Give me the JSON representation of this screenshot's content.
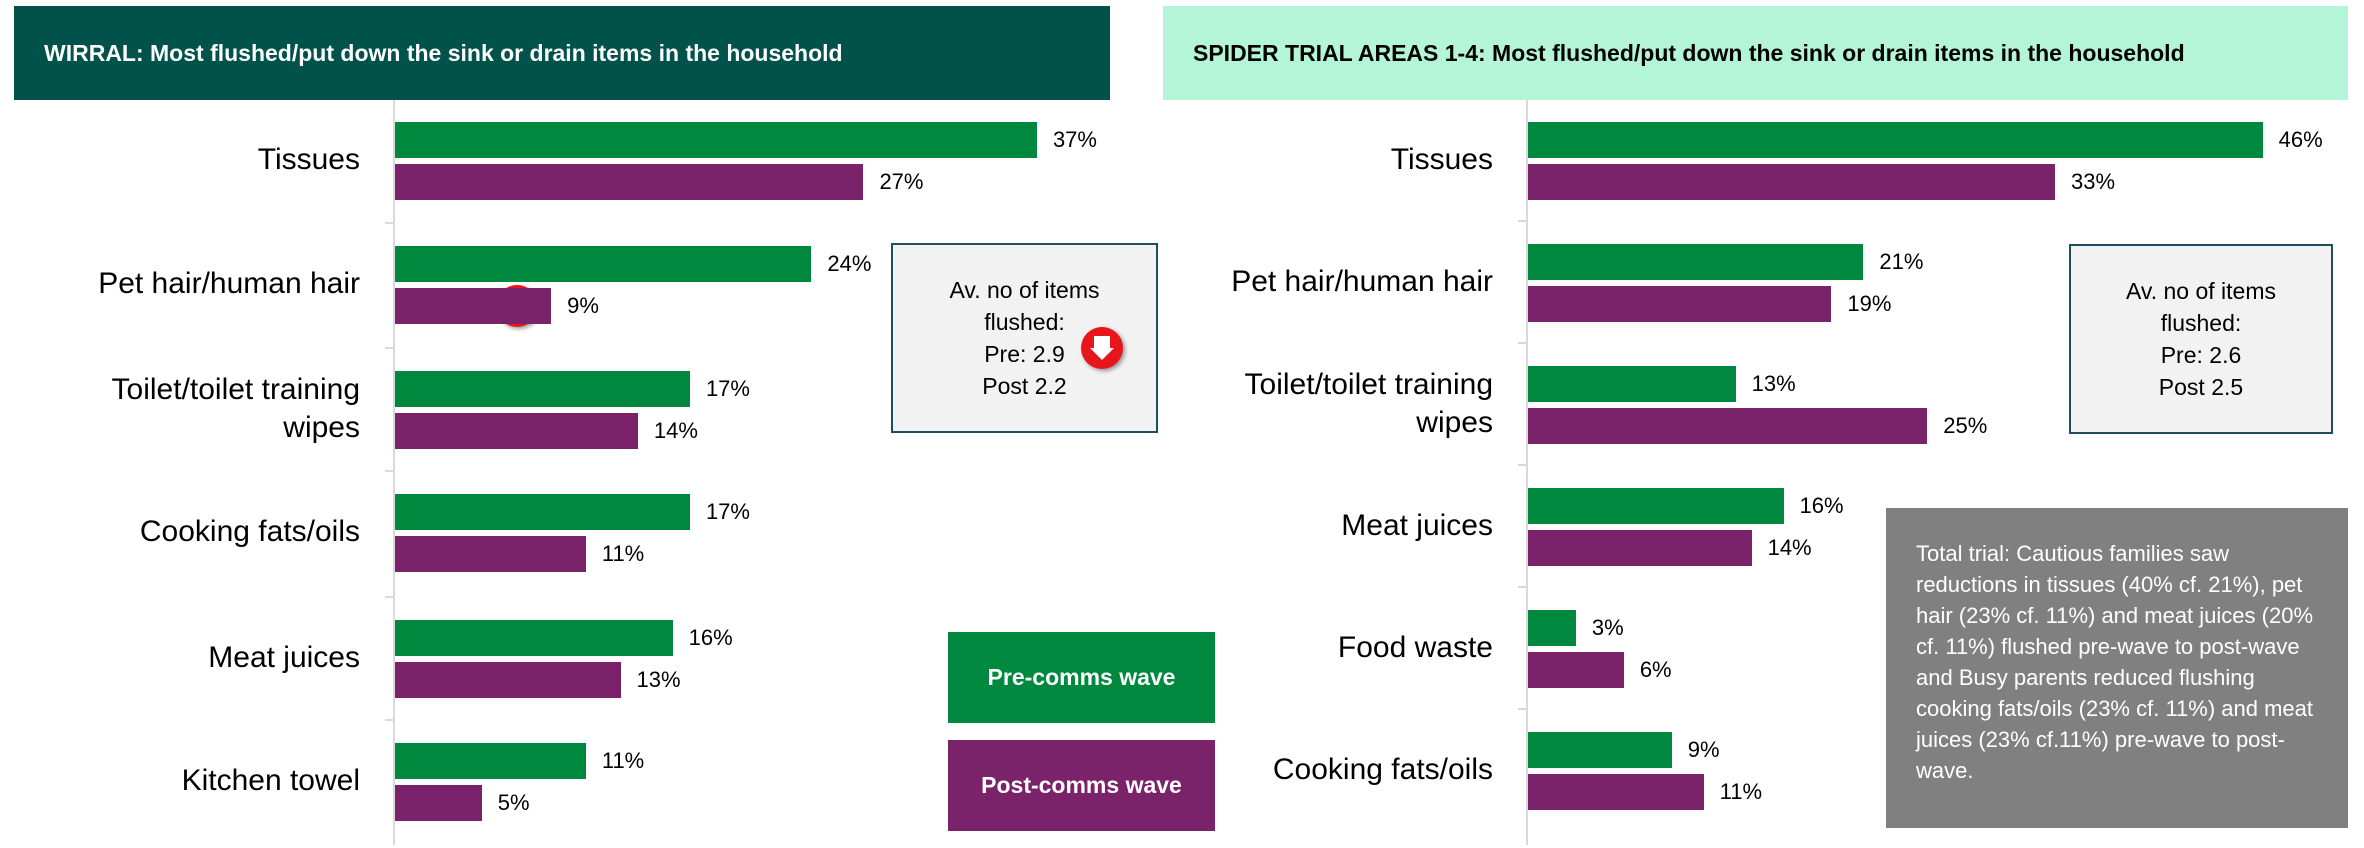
{
  "chart_data": [
    {
      "type": "bar",
      "orientation": "horizontal",
      "title": "WIRRAL: Most flushed/put down the sink or drain items in the household",
      "categories": [
        "Tissues",
        "Pet hair/human hair",
        "Toilet/toilet training wipes",
        "Cooking fats/oils",
        "Meat juices",
        "Kitchen towel"
      ],
      "series": [
        {
          "name": "Pre-comms wave",
          "color": "#00883f",
          "values": [
            37,
            24,
            17,
            17,
            16,
            11
          ],
          "value_labels": [
            "37%",
            "24%",
            "17%",
            "17%",
            "16%",
            "11%"
          ]
        },
        {
          "name": "Post-comms wave",
          "color": "#7a226a",
          "values": [
            27,
            9,
            14,
            11,
            13,
            5
          ],
          "value_labels": [
            "27%",
            "9%",
            "14%",
            "11%",
            "13%",
            "5%"
          ]
        }
      ],
      "info_box": [
        "Av. no of items flushed:",
        "Pre: 2.9",
        "Post 2.2"
      ]
    },
    {
      "type": "bar",
      "orientation": "horizontal",
      "title": "SPIDER TRIAL AREAS 1-4: Most flushed/put down the sink or drain items in the household",
      "categories": [
        "Tissues",
        "Pet hair/human hair",
        "Toilet/toilet training wipes",
        "Meat juices",
        "Food waste",
        "Cooking fats/oils"
      ],
      "series": [
        {
          "color": "#00883f",
          "values": [
            46,
            21,
            13,
            16,
            3,
            9
          ],
          "value_labels": [
            "46%",
            "21%",
            "13%",
            "16%",
            "3%",
            "9%"
          ]
        },
        {
          "color": "#7a226a",
          "values": [
            33,
            19,
            25,
            14,
            6,
            11
          ],
          "value_labels": [
            "33%",
            "19%",
            "25%",
            "14%",
            "6%",
            "11%"
          ]
        }
      ],
      "info_box": [
        "Av. no of items flushed:",
        "Pre: 2.6",
        "Post 2.5"
      ],
      "note": "Total trial: Cautious families saw reductions in tissues (40% cf. 21%), pet hair (23% cf. 11%) and meat juices (20% cf. 11%) flushed pre-wave to post-wave and Busy parents reduced flushing cooking fats/oils (23% cf. 11%) and meat juices (23% cf.11%) pre-wave to post-wave."
    }
  ]
}
